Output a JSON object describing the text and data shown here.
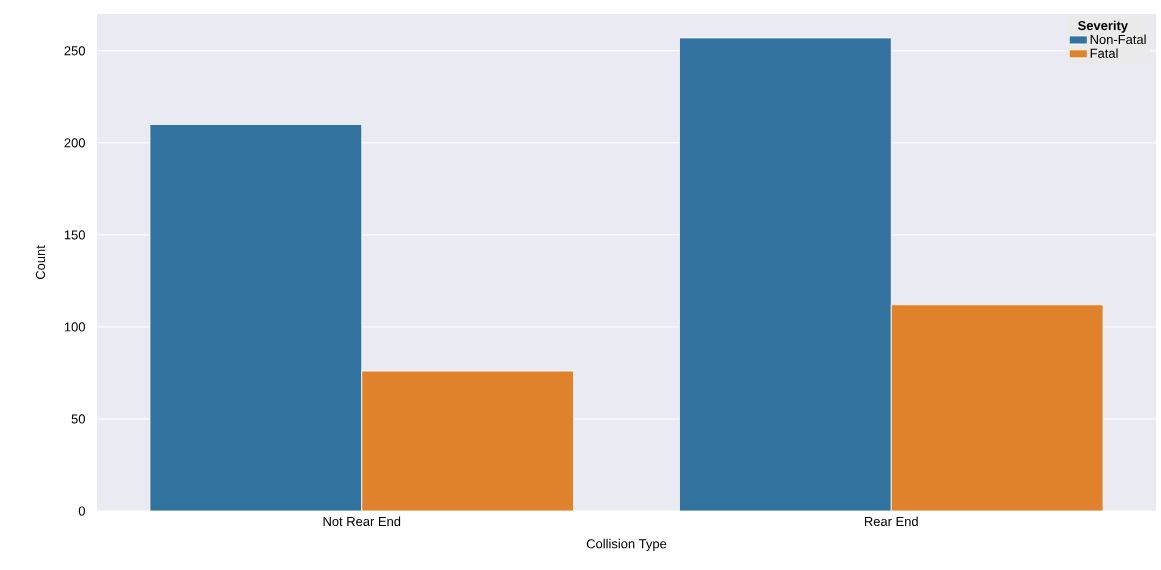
{
  "chart_data": {
    "type": "bar",
    "xlabel": "Collision Type",
    "ylabel": "Count",
    "legend_title": "Severity",
    "categories": [
      "Not Rear End",
      "Rear End"
    ],
    "series": [
      {
        "name": "Non-Fatal",
        "color": "#31729f",
        "values": [
          210,
          257
        ]
      },
      {
        "name": "Fatal",
        "color": "#e0812c",
        "values": [
          76,
          112
        ]
      }
    ],
    "ylim": [
      0,
      270
    ],
    "yticks": [
      0,
      50,
      100,
      150,
      200,
      250
    ],
    "grid": "y",
    "legend": "top right"
  }
}
